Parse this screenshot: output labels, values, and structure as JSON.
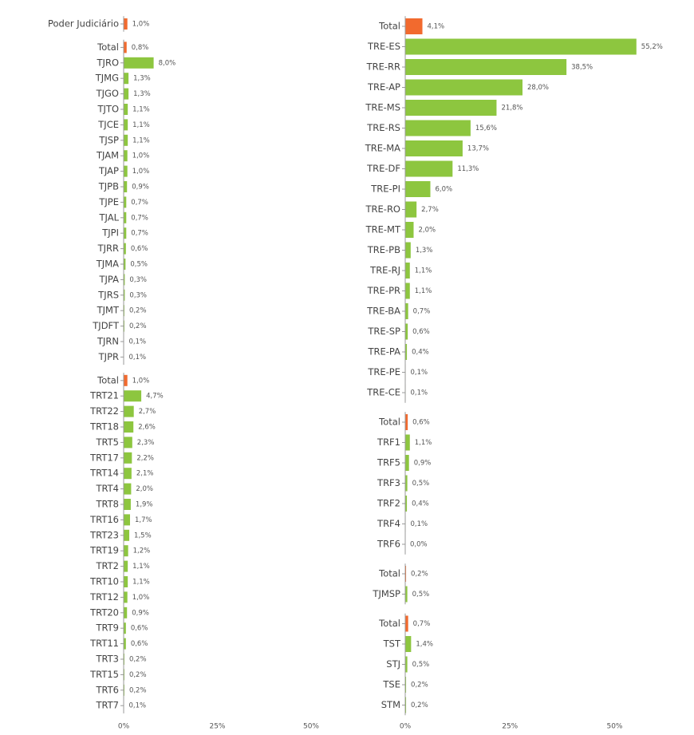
{
  "chart_data": [
    {
      "type": "bar",
      "color": "#8dc63f",
      "highlight_color": "#f26a2e",
      "xlim": [
        0,
        50
      ],
      "xticks": [
        {
          "value": 0,
          "label": "0%"
        },
        {
          "value": 25,
          "label": "25%"
        },
        {
          "value": 50,
          "label": "50%"
        }
      ],
      "groups": [
        {
          "categories": [
            "Poder Judiciário"
          ],
          "values": [
            1.0
          ],
          "value_labels": [
            "1,0%"
          ]
        },
        {
          "categories": [
            "Total",
            "TJRO",
            "TJMG",
            "TJGO",
            "TJTO",
            "TJCE",
            "TJSP",
            "TJAM",
            "TJAP",
            "TJPB",
            "TJPE",
            "TJAL",
            "TJPI",
            "TJRR",
            "TJMA",
            "TJPA",
            "TJRS",
            "TJMT",
            "TJDFT",
            "TJRN",
            "TJPR"
          ],
          "values": [
            0.8,
            8.0,
            1.3,
            1.3,
            1.1,
            1.1,
            1.1,
            1.0,
            1.0,
            0.9,
            0.7,
            0.7,
            0.7,
            0.6,
            0.5,
            0.3,
            0.3,
            0.2,
            0.2,
            0.1,
            0.1
          ],
          "value_labels": [
            "0,8%",
            "8,0%",
            "1,3%",
            "1,3%",
            "1,1%",
            "1,1%",
            "1,1%",
            "1,0%",
            "1,0%",
            "0,9%",
            "0,7%",
            "0,7%",
            "0,7%",
            "0,6%",
            "0,5%",
            "0,3%",
            "0,3%",
            "0,2%",
            "0,2%",
            "0,1%",
            "0,1%"
          ]
        },
        {
          "categories": [
            "Total",
            "TRT21",
            "TRT22",
            "TRT18",
            "TRT5",
            "TRT17",
            "TRT14",
            "TRT4",
            "TRT8",
            "TRT16",
            "TRT23",
            "TRT19",
            "TRT2",
            "TRT10",
            "TRT12",
            "TRT20",
            "TRT9",
            "TRT11",
            "TRT3",
            "TRT15",
            "TRT6",
            "TRT7"
          ],
          "values": [
            1.0,
            4.7,
            2.7,
            2.6,
            2.3,
            2.2,
            2.1,
            2.0,
            1.9,
            1.7,
            1.5,
            1.2,
            1.1,
            1.1,
            1.0,
            0.9,
            0.6,
            0.6,
            0.2,
            0.2,
            0.2,
            0.1
          ],
          "value_labels": [
            "1,0%",
            "4,7%",
            "2,7%",
            "2,6%",
            "2,3%",
            "2,2%",
            "2,1%",
            "2,0%",
            "1,9%",
            "1,7%",
            "1,5%",
            "1,2%",
            "1,1%",
            "1,1%",
            "1,0%",
            "0,9%",
            "0,6%",
            "0,6%",
            "0,2%",
            "0,2%",
            "0,2%",
            "0,1%"
          ]
        }
      ]
    },
    {
      "type": "bar",
      "color": "#8dc63f",
      "highlight_color": "#f26a2e",
      "xlim": [
        0,
        60
      ],
      "xticks": [
        {
          "value": 0,
          "label": "0%"
        },
        {
          "value": 25,
          "label": "25%"
        },
        {
          "value": 50,
          "label": "50%"
        }
      ],
      "groups": [
        {
          "categories": [
            "Total",
            "TRE-ES",
            "TRE-RR",
            "TRE-AP",
            "TRE-MS",
            "TRE-RS",
            "TRE-MA",
            "TRE-DF",
            "TRE-PI",
            "TRE-RO",
            "TRE-MT",
            "TRE-PB",
            "TRE-RJ",
            "TRE-PR",
            "TRE-BA",
            "TRE-SP",
            "TRE-PA",
            "TRE-PE",
            "TRE-CE"
          ],
          "values": [
            4.1,
            55.2,
            38.5,
            28.0,
            21.8,
            15.6,
            13.7,
            11.3,
            6.0,
            2.7,
            2.0,
            1.3,
            1.1,
            1.1,
            0.7,
            0.6,
            0.4,
            0.1,
            0.1
          ],
          "value_labels": [
            "4,1%",
            "55,2%",
            "38,5%",
            "28,0%",
            "21,8%",
            "15,6%",
            "13,7%",
            "11,3%",
            "6,0%",
            "2,7%",
            "2,0%",
            "1,3%",
            "1,1%",
            "1,1%",
            "0,7%",
            "0,6%",
            "0,4%",
            "0,1%",
            "0,1%"
          ]
        },
        {
          "categories": [
            "Total",
            "TRF1",
            "TRF5",
            "TRF3",
            "TRF2",
            "TRF4",
            "TRF6"
          ],
          "values": [
            0.6,
            1.1,
            0.9,
            0.5,
            0.4,
            0.1,
            0.0
          ],
          "value_labels": [
            "0,6%",
            "1,1%",
            "0,9%",
            "0,5%",
            "0,4%",
            "0,1%",
            "0,0%"
          ]
        },
        {
          "categories": [
            "Total",
            "TJMSP"
          ],
          "values": [
            0.2,
            0.5
          ],
          "value_labels": [
            "0,2%",
            "0,5%"
          ]
        },
        {
          "categories": [
            "Total",
            "TST",
            "STJ",
            "TSE",
            "STM"
          ],
          "values": [
            0.7,
            1.4,
            0.5,
            0.2,
            0.2
          ],
          "value_labels": [
            "0,7%",
            "1,4%",
            "0,5%",
            "0,2%",
            "0,2%"
          ]
        }
      ]
    }
  ]
}
